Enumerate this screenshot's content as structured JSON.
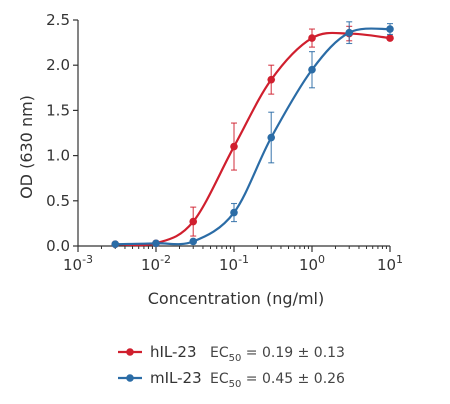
{
  "chart_data": {
    "type": "line",
    "xlabel": "Concentration (ng/ml)",
    "ylabel": "OD (630 nm)",
    "xscale": "log",
    "xlim": [
      0.001,
      10
    ],
    "ylim": [
      0.0,
      2.5
    ],
    "x_ticks": [
      {
        "base": "10",
        "exp": "-3"
      },
      {
        "base": "10",
        "exp": "-2"
      },
      {
        "base": "10",
        "exp": "-1"
      },
      {
        "base": "10",
        "exp": "0"
      },
      {
        "base": "10",
        "exp": "1"
      }
    ],
    "y_ticks": [
      "0.0",
      "0.5",
      "1.0",
      "1.5",
      "2.0",
      "2.5"
    ],
    "y_tick_values": [
      0.0,
      0.5,
      1.0,
      1.5,
      2.0,
      2.5
    ],
    "grid": false,
    "legend_position": "bottom",
    "series": [
      {
        "name": "hIL-23",
        "ec_label": "EC",
        "ec_sub": "50",
        "ec_value": "= 0.19 ± 0.13",
        "color": "#d01f2e",
        "x": [
          0.003,
          0.01,
          0.03,
          0.1,
          0.3,
          1,
          3,
          10
        ],
        "y": [
          0.02,
          0.03,
          0.27,
          1.1,
          1.84,
          2.3,
          2.35,
          2.3
        ],
        "err": [
          0.0,
          0.0,
          0.16,
          0.26,
          0.16,
          0.1,
          0.08,
          0.0
        ]
      },
      {
        "name": "mIL-23",
        "ec_label": "EC",
        "ec_sub": "50",
        "ec_value": "= 0.45 ± 0.26",
        "color": "#2b6ca6",
        "x": [
          0.003,
          0.01,
          0.03,
          0.1,
          0.3,
          1,
          3,
          10
        ],
        "y": [
          0.02,
          0.03,
          0.05,
          0.37,
          1.2,
          1.95,
          2.36,
          2.4
        ],
        "err": [
          0.0,
          0.0,
          0.0,
          0.1,
          0.28,
          0.2,
          0.12,
          0.06
        ]
      }
    ]
  }
}
